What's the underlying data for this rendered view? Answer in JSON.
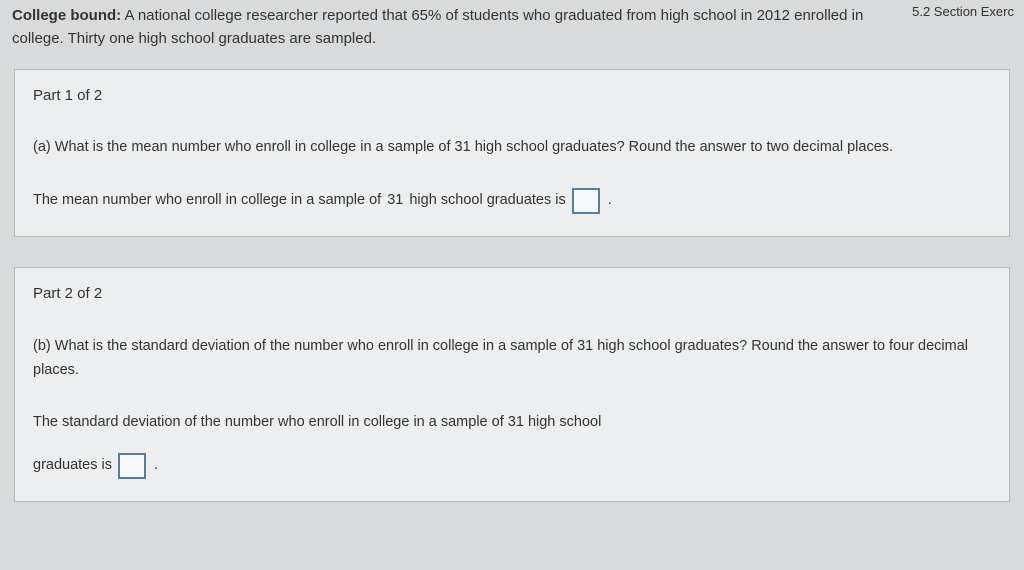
{
  "section_label": "5.2 Section Exerc",
  "intro": {
    "bold_lead": "College bound:",
    "body_before_pct": " A national college researcher reported that ",
    "pct": "65%",
    "body_after_pct": " of students who graduated from high school in ",
    "year": "2012",
    "body_tail": " enrolled in college. Thirty one high school graduates are sampled."
  },
  "part1": {
    "title": "Part 1 of 2",
    "q_letter": "(a)",
    "q_before_n": " What is the mean number who enroll in college in a sample of ",
    "n": "31",
    "q_after_n": " high school graduates? Round the answer to two decimal places.",
    "ans_before_n": "The mean number who enroll in college in a sample of ",
    "ans_after_n": " high school graduates is"
  },
  "part2": {
    "title": "Part 2 of 2",
    "q_letter": "(b)",
    "q_before_n": " What is the standard deviation of the number who enroll in college in a sample of ",
    "n": "31",
    "q_after_n": " high school graduates? Round the answer to four decimal places.",
    "ans_before_n": "The standard deviation of the number who enroll in college in a sample of ",
    "ans_after_n": " high school",
    "ans_line2": "graduates is"
  },
  "colors": {
    "page_bg": "#d8dadb",
    "box_bg": "#eceeef",
    "box_border": "#b7b8b8",
    "input_border": "#5b7c9a",
    "input_bg": "#f6f9fb",
    "text": "#333333"
  }
}
